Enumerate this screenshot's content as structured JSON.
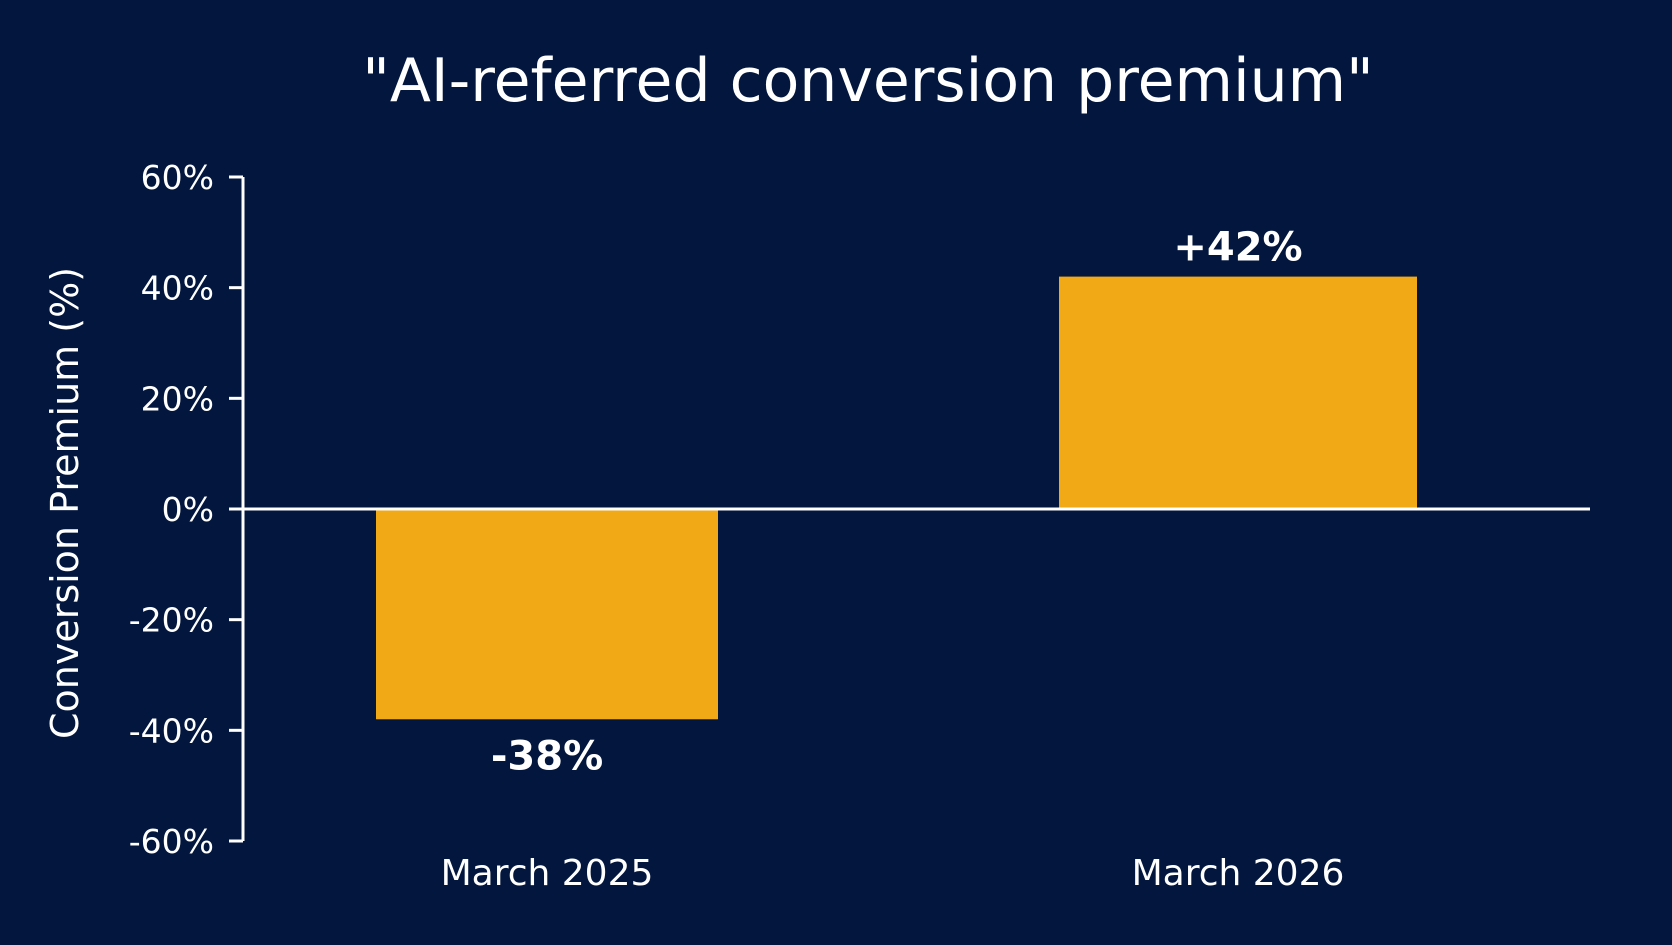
{
  "chart_data": {
    "type": "bar",
    "title": "\"AI-referred conversion premium\"",
    "xlabel": "",
    "ylabel": "Conversion Premium (%)",
    "categories": [
      "March 2025",
      "March 2026"
    ],
    "values": [
      -38,
      42
    ],
    "data_labels": [
      "-38%",
      "+42%"
    ],
    "ylim": [
      -60,
      60
    ],
    "yticks": [
      60,
      40,
      20,
      0,
      -20,
      -40,
      -60
    ],
    "ytick_labels": [
      "60%",
      "40%",
      "20%",
      "0%",
      "-20%",
      "-40%",
      "-60%"
    ],
    "grid": false,
    "legend": "none"
  },
  "colors": {
    "background": "#03163e",
    "bar": "#f2a916",
    "text": "#ffffff",
    "axis": "#ffffff"
  }
}
